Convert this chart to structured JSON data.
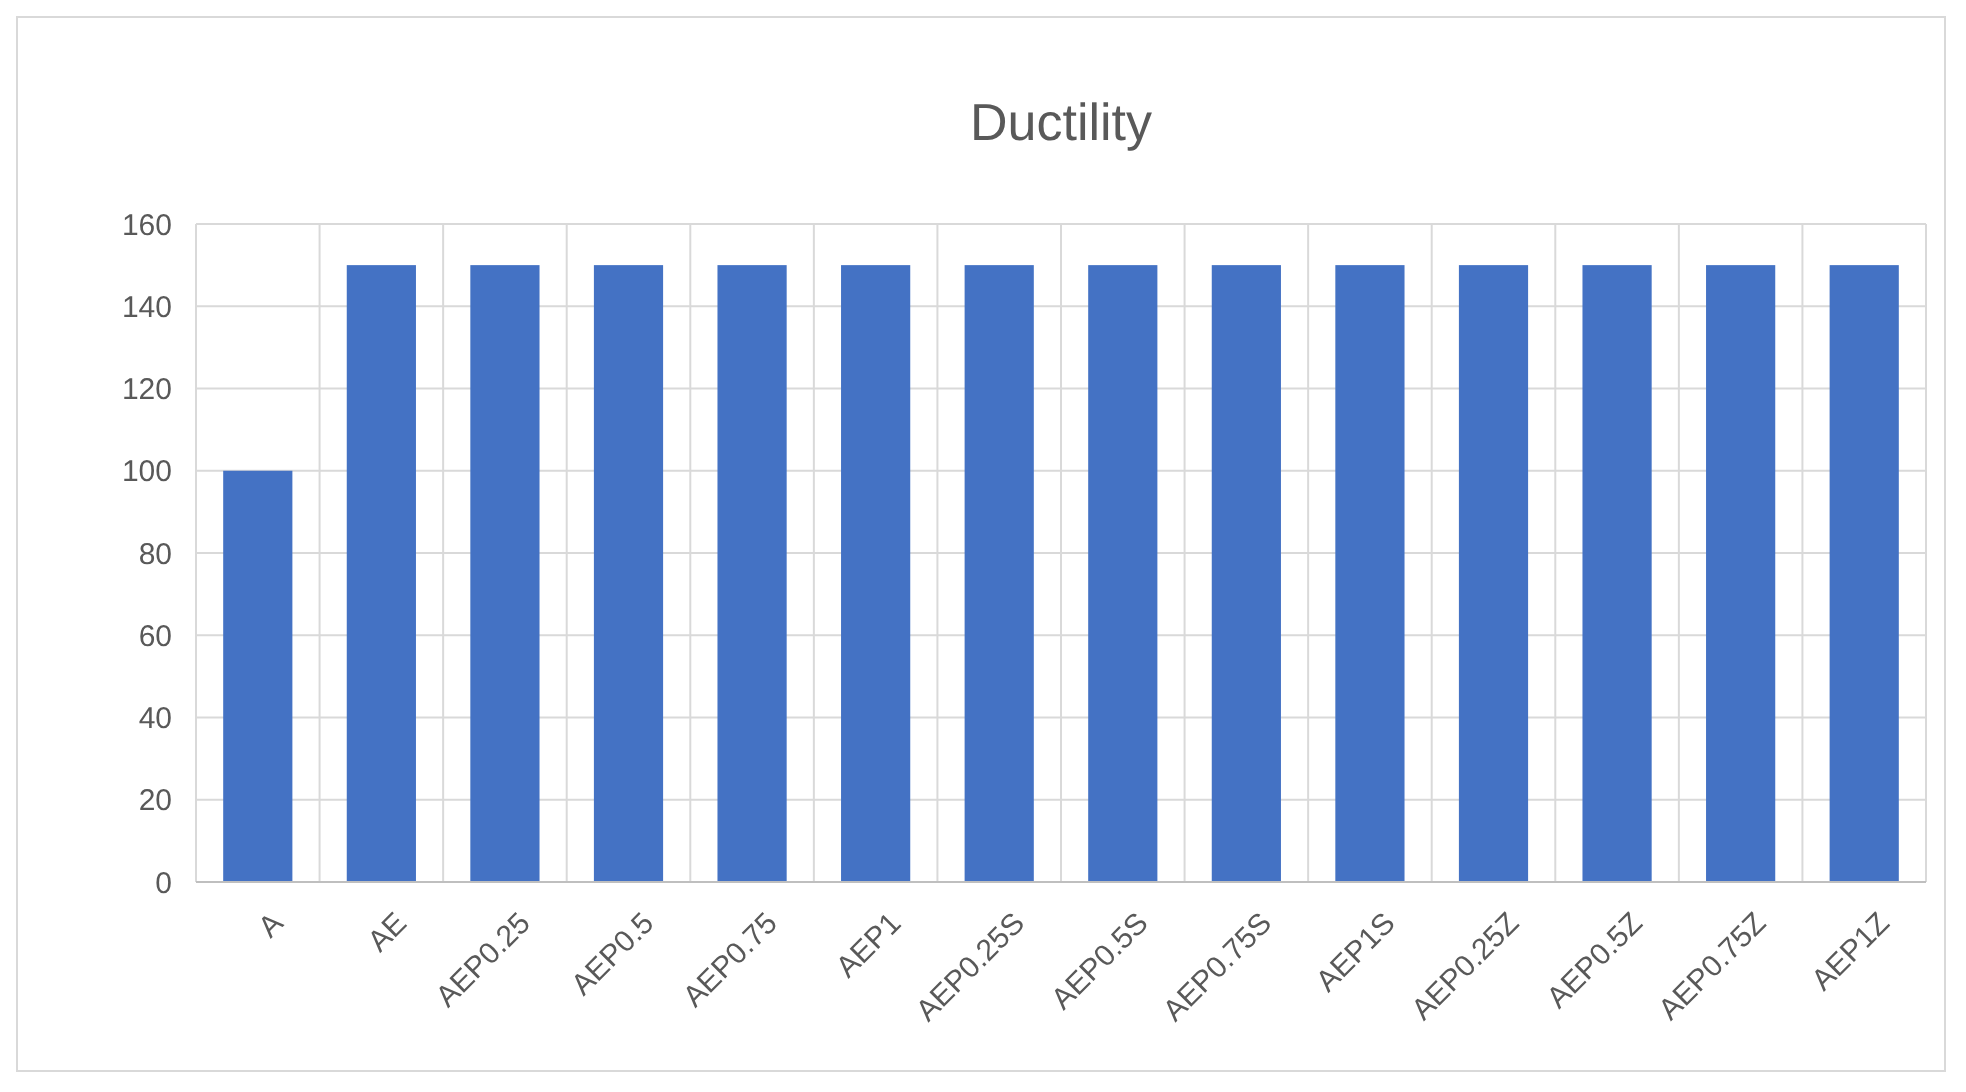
{
  "chart_data": {
    "type": "bar",
    "title": "Ductility",
    "categories": [
      "A",
      "AE",
      "AEP0.25",
      "AEP0.5",
      "AEP0.75",
      "AEP1",
      "AEP0.25S",
      "AEP0.5S",
      "AEP0.75S",
      "AEP1S",
      "AEP0.25Z",
      "AEP0.5Z",
      "AEP0.75Z",
      "AEP1Z"
    ],
    "values": [
      100,
      150,
      150,
      150,
      150,
      150,
      150,
      150,
      150,
      150,
      150,
      150,
      150,
      150
    ],
    "color": "#4472c4",
    "ylim": [
      0,
      160
    ],
    "yticks": [
      0,
      20,
      40,
      60,
      80,
      100,
      120,
      140,
      160
    ],
    "grid": true
  }
}
